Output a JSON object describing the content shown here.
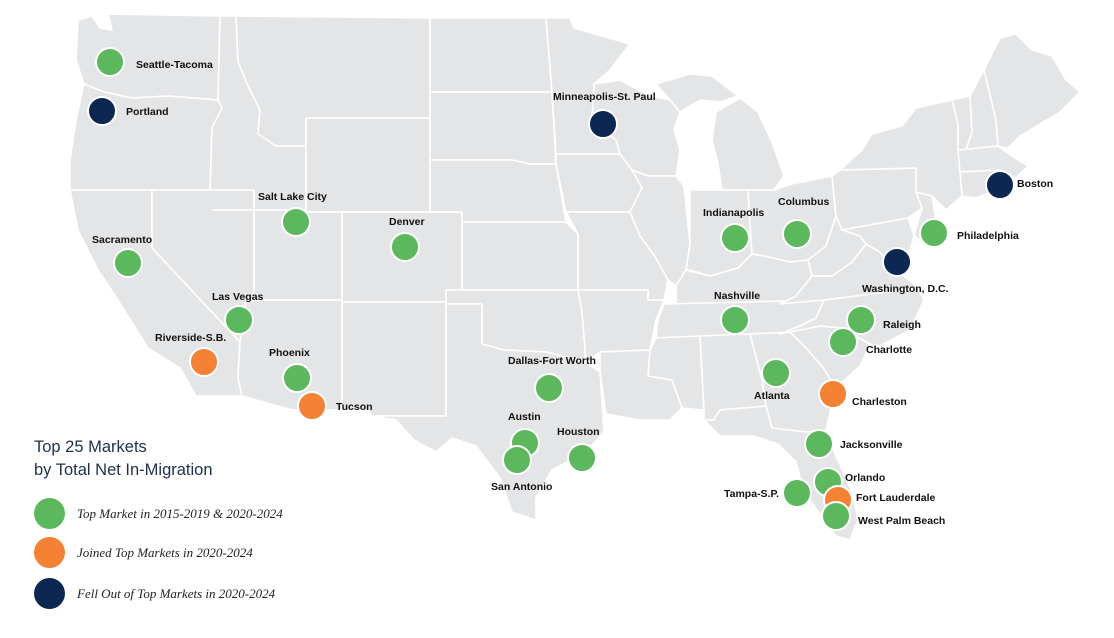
{
  "legend": {
    "title_line1": "Top 25 Markets",
    "title_line2": "by Total Net In-Migration",
    "items": [
      {
        "label": "Top Market in 2015-2019 & 2020-2024",
        "color": "#5cb85c"
      },
      {
        "label": "Joined Top Markets in 2020-2024",
        "color": "#f58132"
      },
      {
        "label": "Fell Out of Top Markets in 2020-2024",
        "color": "#0c2752"
      }
    ]
  },
  "colors": {
    "top_market": "#5cb85c",
    "joined": "#f58132",
    "fell_out": "#0c2752",
    "land": "#e4e5e7",
    "borders": "#ffffff"
  },
  "markets": [
    {
      "name": "Seattle-Tacoma",
      "status": "top_market"
    },
    {
      "name": "Portland",
      "status": "fell_out"
    },
    {
      "name": "Minneapolis-St. Paul",
      "status": "fell_out"
    },
    {
      "name": "Boston",
      "status": "fell_out"
    },
    {
      "name": "Salt Lake City",
      "status": "top_market"
    },
    {
      "name": "Denver",
      "status": "top_market"
    },
    {
      "name": "Sacramento",
      "status": "top_market"
    },
    {
      "name": "Indianapolis",
      "status": "top_market"
    },
    {
      "name": "Columbus",
      "status": "top_market"
    },
    {
      "name": "Philadelphia",
      "status": "top_market"
    },
    {
      "name": "Washington, D.C.",
      "status": "fell_out"
    },
    {
      "name": "Las Vegas",
      "status": "top_market"
    },
    {
      "name": "Nashville",
      "status": "top_market"
    },
    {
      "name": "Riverside-S.B.",
      "status": "joined"
    },
    {
      "name": "Raleigh",
      "status": "top_market"
    },
    {
      "name": "Charlotte",
      "status": "top_market"
    },
    {
      "name": "Phoenix",
      "status": "top_market"
    },
    {
      "name": "Dallas-Fort Worth",
      "status": "top_market"
    },
    {
      "name": "Atlanta",
      "status": "top_market"
    },
    {
      "name": "Tucson",
      "status": "joined"
    },
    {
      "name": "Charleston",
      "status": "joined"
    },
    {
      "name": "Austin",
      "status": "top_market"
    },
    {
      "name": "Houston",
      "status": "top_market"
    },
    {
      "name": "Jacksonville",
      "status": "top_market"
    },
    {
      "name": "San Antonio",
      "status": "top_market"
    },
    {
      "name": "Orlando",
      "status": "top_market"
    },
    {
      "name": "Tampa-S.P.",
      "status": "top_market"
    },
    {
      "name": "Fort Lauderdale",
      "status": "joined"
    },
    {
      "name": "West Palm Beach",
      "status": "top_market"
    }
  ]
}
